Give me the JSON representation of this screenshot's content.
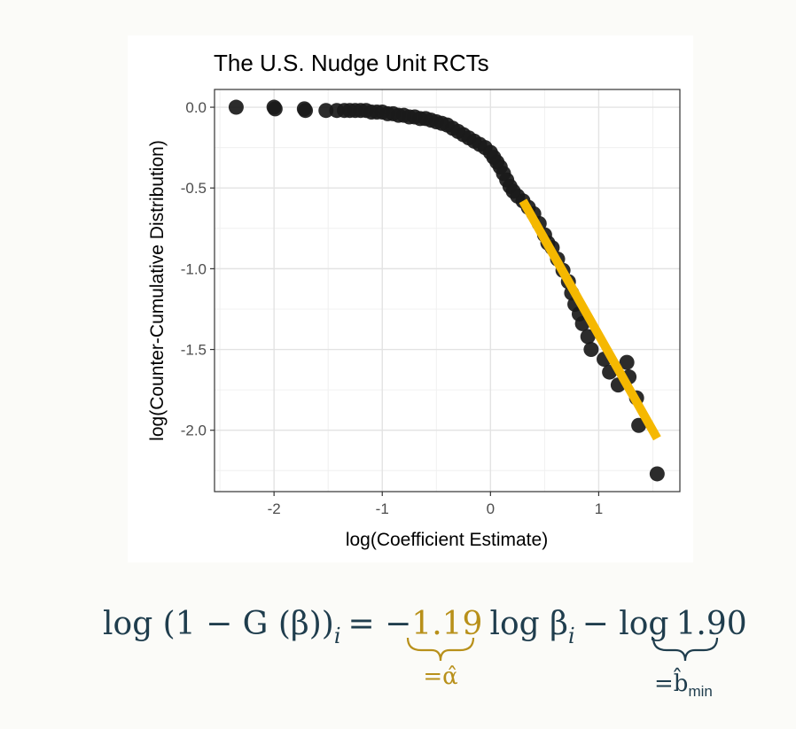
{
  "chart_data": {
    "type": "scatter",
    "title": "The U.S. Nudge Unit RCTs",
    "xlabel": "log(Coefficient Estimate)",
    "ylabel": "log(Counter-Cumulative Distribution)",
    "xlim": [
      -2.55,
      1.75
    ],
    "ylim": [
      -2.38,
      0.11
    ],
    "x_ticks": [
      -2,
      -1,
      0,
      1
    ],
    "x_tick_labels": [
      "-2",
      "-1",
      "0",
      "1"
    ],
    "y_ticks": [
      0,
      -0.5,
      -1,
      -1.5,
      -2
    ],
    "y_tick_labels": [
      "0.0",
      "-0.5",
      "-1.0",
      "-1.5",
      "-2.0"
    ],
    "grid": true,
    "point_color": "#1a1a1a",
    "points": [
      [
        -2.35,
        0.0
      ],
      [
        -2.0,
        0.0
      ],
      [
        -1.99,
        -0.01
      ],
      [
        -1.72,
        -0.01
      ],
      [
        -1.71,
        -0.02
      ],
      [
        -1.52,
        -0.02
      ],
      [
        -1.42,
        -0.02
      ],
      [
        -1.35,
        -0.02
      ],
      [
        -1.3,
        -0.02
      ],
      [
        -1.25,
        -0.02
      ],
      [
        -1.2,
        -0.02
      ],
      [
        -1.15,
        -0.02
      ],
      [
        -1.1,
        -0.03
      ],
      [
        -1.05,
        -0.03
      ],
      [
        -1.0,
        -0.03
      ],
      [
        -0.95,
        -0.04
      ],
      [
        -0.9,
        -0.04
      ],
      [
        -0.85,
        -0.05
      ],
      [
        -0.8,
        -0.05
      ],
      [
        -0.75,
        -0.06
      ],
      [
        -0.7,
        -0.06
      ],
      [
        -0.65,
        -0.07
      ],
      [
        -0.6,
        -0.07
      ],
      [
        -0.55,
        -0.08
      ],
      [
        -0.5,
        -0.09
      ],
      [
        -0.45,
        -0.1
      ],
      [
        -0.4,
        -0.11
      ],
      [
        -0.35,
        -0.13
      ],
      [
        -0.3,
        -0.15
      ],
      [
        -0.25,
        -0.17
      ],
      [
        -0.2,
        -0.19
      ],
      [
        -0.15,
        -0.21
      ],
      [
        -0.1,
        -0.23
      ],
      [
        -0.05,
        -0.25
      ],
      [
        0.0,
        -0.28
      ],
      [
        0.03,
        -0.31
      ],
      [
        0.06,
        -0.34
      ],
      [
        0.09,
        -0.37
      ],
      [
        0.12,
        -0.41
      ],
      [
        0.15,
        -0.45
      ],
      [
        0.18,
        -0.49
      ],
      [
        0.21,
        -0.52
      ],
      [
        0.25,
        -0.55
      ],
      [
        0.3,
        -0.58
      ],
      [
        0.35,
        -0.62
      ],
      [
        0.4,
        -0.66
      ],
      [
        0.45,
        -0.72
      ],
      [
        0.5,
        -0.79
      ],
      [
        0.53,
        -0.84
      ],
      [
        0.57,
        -0.87
      ],
      [
        0.62,
        -0.94
      ],
      [
        0.67,
        -1.01
      ],
      [
        0.72,
        -1.08
      ],
      [
        0.75,
        -1.15
      ],
      [
        0.78,
        -1.22
      ],
      [
        0.82,
        -1.28
      ],
      [
        0.85,
        -1.34
      ],
      [
        0.9,
        -1.42
      ],
      [
        0.93,
        -1.5
      ],
      [
        1.05,
        -1.56
      ],
      [
        1.1,
        -1.64
      ],
      [
        1.18,
        -1.72
      ],
      [
        1.26,
        -1.58
      ],
      [
        1.28,
        -1.67
      ],
      [
        1.35,
        -1.8
      ],
      [
        1.37,
        -1.97
      ],
      [
        1.54,
        -2.27
      ]
    ],
    "fit_line": {
      "color": "#f5b800",
      "x": [
        0.3,
        1.54
      ],
      "y": [
        -0.58,
        -2.05
      ]
    }
  },
  "formula": {
    "left": "log (1 − G (β))",
    "left_sub": "i",
    "equals": "= −",
    "alpha_value": "1.19",
    "alpha_label": "=α̂",
    "middle": "log β",
    "middle_sub": "i",
    "minus_log": "− log",
    "b_value": "1.90",
    "b_label": "=b̂",
    "b_label_sub": "min",
    "text_color": "#1f3d4d",
    "alpha_color": "#b8901a"
  }
}
